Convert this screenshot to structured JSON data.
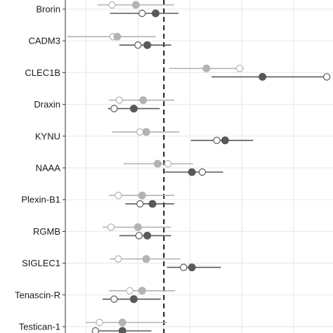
{
  "chart_data": {
    "type": "forest",
    "title": "",
    "xlabel": "",
    "ylabel": "",
    "xlim": [
      -0.95,
      1.63
    ],
    "x_gridlines": [
      -0.75,
      -0.25,
      0.25,
      0.75,
      1.25
    ],
    "reference_line": 0,
    "grid": true,
    "legend": "none",
    "categories": [
      "Brorin",
      "CADM3",
      "CLEC1B",
      "Draxin",
      "KYNU",
      "NAAA",
      "Plexin-B1",
      "RGMB",
      "SIGLEC1",
      "Tenascin-R",
      "Testican-1"
    ],
    "colors": {
      "light": "#b3b3b3",
      "dark": "#595959",
      "reference": "#000000",
      "grid": "#ebebeb",
      "axis": "#333333"
    },
    "series": [
      {
        "color": "light",
        "offset": "upper",
        "filled": [
          {
            "x": -0.27,
            "lo": -0.64,
            "hi": 0.1
          },
          {
            "x": -0.45,
            "lo": -0.93,
            "hi": -0.08
          },
          {
            "x": 0.41,
            "lo": 0.05,
            "hi": 0.77
          },
          {
            "x": -0.2,
            "lo": -0.53,
            "hi": 0.1
          },
          {
            "x": -0.17,
            "lo": -0.5,
            "hi": 0.15
          },
          {
            "x": -0.06,
            "lo": -0.39,
            "hi": 0.28
          },
          {
            "x": -0.21,
            "lo": -0.53,
            "hi": 0.1
          },
          {
            "x": -0.25,
            "lo": -0.59,
            "hi": 0.07
          },
          {
            "x": -0.17,
            "lo": -0.52,
            "hi": 0.16
          },
          {
            "x": -0.21,
            "lo": -0.53,
            "hi": 0.11
          },
          {
            "x": -0.4,
            "lo": -0.75,
            "hi": 0.03
          }
        ],
        "open": [
          -0.5,
          -0.49,
          0.73,
          -0.43,
          -0.23,
          0.04,
          -0.44,
          -0.51,
          -0.44,
          -0.33,
          -0.62
        ]
      },
      {
        "color": "dark",
        "offset": "lower",
        "filled": [
          {
            "x": -0.08,
            "lo": -0.52,
            "hi": 0.14
          },
          {
            "x": -0.16,
            "lo": -0.43,
            "hi": 0.07
          },
          {
            "x": 0.95,
            "lo": 0.46,
            "hi": 1.55
          },
          {
            "x": -0.29,
            "lo": -0.54,
            "hi": -0.04
          },
          {
            "x": 0.59,
            "lo": 0.26,
            "hi": 0.86
          },
          {
            "x": 0.27,
            "lo": 0.0,
            "hi": 0.57
          },
          {
            "x": -0.11,
            "lo": -0.37,
            "hi": 0.1
          },
          {
            "x": -0.16,
            "lo": -0.43,
            "hi": 0.07
          },
          {
            "x": 0.27,
            "lo": 0.03,
            "hi": 0.55
          },
          {
            "x": -0.29,
            "lo": -0.59,
            "hi": -0.03
          },
          {
            "x": -0.4,
            "lo": -0.65,
            "hi": -0.12
          }
        ],
        "open": [
          -0.21,
          -0.25,
          1.57,
          -0.48,
          0.51,
          0.37,
          -0.23,
          -0.24,
          0.19,
          -0.48,
          -0.66
        ]
      }
    ]
  }
}
